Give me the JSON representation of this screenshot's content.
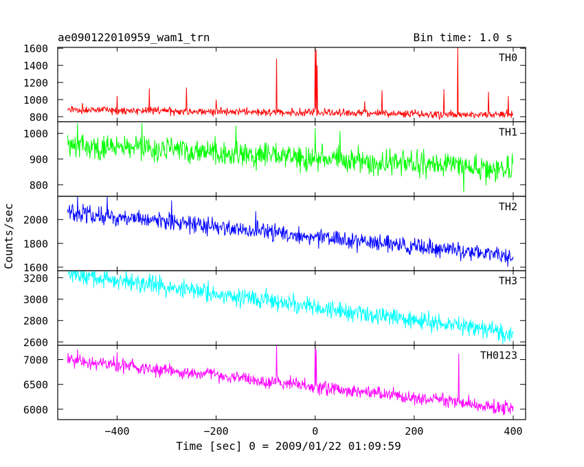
{
  "chart_data": {
    "type": "line",
    "title": "ae090122010959_wam1_trn",
    "bin_time": "Bin time: 1.0 s",
    "xlabel": "Time [sec] 0 = 2009/01/22 01:09:59",
    "ylabel": "Counts/sec",
    "xlim": [
      -520,
      425
    ],
    "x_ticks": [
      -400,
      -200,
      0,
      200,
      400
    ],
    "x_range": [
      -500,
      400
    ],
    "panels": [
      {
        "name": "TH0",
        "color": "#ff0000",
        "ylim": [
          740,
          1610
        ],
        "yticks": [
          800,
          1000,
          1200,
          1400,
          1600
        ],
        "trend": [
          [
            -500,
            880
          ],
          [
            400,
            820
          ]
        ],
        "noise": 28,
        "spikes": [
          [
            -470,
            960
          ],
          [
            -400,
            1040
          ],
          [
            -335,
            1130
          ],
          [
            -260,
            1140
          ],
          [
            -200,
            1000
          ],
          [
            -78,
            1480
          ],
          [
            0,
            1610
          ],
          [
            2,
            1580
          ],
          [
            4,
            1400
          ],
          [
            100,
            980
          ],
          [
            135,
            1110
          ],
          [
            260,
            1120
          ],
          [
            288,
            1610
          ],
          [
            350,
            1090
          ],
          [
            390,
            1040
          ]
        ]
      },
      {
        "name": "TH1",
        "color": "#00ff00",
        "ylim": [
          755,
          1045
        ],
        "yticks": [
          800,
          900,
          1000
        ],
        "trend": [
          [
            -500,
            955
          ],
          [
            400,
            860
          ]
        ],
        "noise": 30,
        "spikes": [
          [
            -480,
            1040
          ],
          [
            -350,
            1040
          ],
          [
            -160,
            1030
          ],
          [
            0,
            1020
          ],
          [
            50,
            1010
          ],
          [
            300,
            770
          ]
        ]
      },
      {
        "name": "TH2",
        "color": "#0000ff",
        "ylim": [
          1570,
          2195
        ],
        "yticks": [
          1600,
          1800,
          2000
        ],
        "trend": [
          [
            -500,
            2060
          ],
          [
            400,
            1690
          ]
        ],
        "noise": 45,
        "spikes": [
          [
            -480,
            2195
          ],
          [
            -420,
            2190
          ],
          [
            -290,
            2160
          ],
          [
            -120,
            2070
          ],
          [
            0,
            1880
          ],
          [
            250,
            1730
          ]
        ]
      },
      {
        "name": "TH3",
        "color": "#00ffff",
        "ylim": [
          2570,
          3265
        ],
        "yticks": [
          2600,
          2800,
          3000,
          3200
        ],
        "trend": [
          [
            -500,
            3240
          ],
          [
            400,
            2680
          ]
        ],
        "noise": 55,
        "spikes": [
          [
            -480,
            3265
          ],
          [
            -420,
            3265
          ],
          [
            -120,
            3060
          ],
          [
            0,
            2950
          ],
          [
            60,
            2880
          ]
        ]
      },
      {
        "name": "TH0123",
        "color": "#ff00ff",
        "ylim": [
          5790,
          7290
        ],
        "yticks": [
          6000,
          6500,
          7000
        ],
        "trend": [
          [
            -500,
            7000
          ],
          [
            400,
            6020
          ]
        ],
        "noise": 85,
        "spikes": [
          [
            -480,
            7200
          ],
          [
            -400,
            7150
          ],
          [
            -78,
            7290
          ],
          [
            0,
            7290
          ],
          [
            2,
            7200
          ],
          [
            290,
            7120
          ]
        ]
      }
    ]
  }
}
